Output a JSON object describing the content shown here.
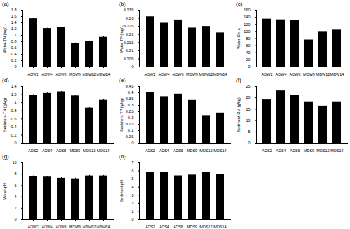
{
  "chart_data": [
    {
      "type": "bar",
      "title": "(a)",
      "y_label": "Water-TN (mg/L)",
      "categories": [
        "ADW2",
        "ADW4",
        "ADW6",
        "MDW9",
        "MDW12",
        "MDW14"
      ],
      "values": [
        1.53,
        1.22,
        1.25,
        0.75,
        0.8,
        0.94
      ],
      "errors": [
        0.02,
        0.01,
        0.01,
        0.01,
        0.01,
        0.02
      ],
      "color": "#000000",
      "ylim": [
        0,
        1.8
      ],
      "yticks": [
        0,
        0.2,
        0.4,
        0.6,
        0.8,
        1,
        1.2,
        1.4,
        1.6,
        1.8
      ]
    },
    {
      "type": "bar",
      "title": "(b)",
      "y_label": "Water-TP (mg/L)",
      "categories": [
        "ADW2",
        "ADW4",
        "ADW6",
        "MDW9",
        "MDW12",
        "MDW14"
      ],
      "values": [
        0.031,
        0.027,
        0.029,
        0.024,
        0.025,
        0.021
      ],
      "errors": [
        0.0015,
        0.001,
        0.0015,
        0.0015,
        0.001,
        0.003
      ],
      "color": "#000000",
      "ylim": [
        0,
        0.035
      ],
      "yticks": [
        0,
        0.005,
        0.01,
        0.015,
        0.02,
        0.025,
        0.03,
        0.035
      ]
    },
    {
      "type": "bar",
      "title": "(c)",
      "y_label": "Water-Chl-a",
      "categories": [
        "ADW2",
        "ADW4",
        "ADW6",
        "MDW9",
        "MDW12",
        "MDW14"
      ],
      "values": [
        135,
        133,
        132,
        76,
        100,
        104
      ],
      "errors": [
        1.5,
        1,
        1,
        1,
        1,
        2
      ],
      "color": "#000000",
      "ylim": [
        0,
        160
      ],
      "yticks": [
        0,
        20,
        40,
        60,
        80,
        100,
        120,
        140,
        160
      ]
    },
    {
      "type": "bar",
      "title": "(d)",
      "y_label": "Sediment-TN (g/kg)",
      "categories": [
        "ADS2",
        "ADS4",
        "ADS6",
        "MDS9",
        "MDS12",
        "MDS14"
      ],
      "values": [
        1.19,
        1.23,
        1.27,
        1.17,
        0.87,
        1.06
      ],
      "errors": [
        0.01,
        0.01,
        0.01,
        0.01,
        0.01,
        0.03
      ],
      "color": "#000000",
      "ylim": [
        0,
        1.4
      ],
      "yticks": [
        0,
        0.2,
        0.4,
        0.6,
        0.8,
        1,
        1.2,
        1.4
      ]
    },
    {
      "type": "bar",
      "title": "(e)",
      "y_label": "Sediment-TP (g/kg)",
      "categories": [
        "ADS2",
        "ADS4",
        "ADS6",
        "MDS9",
        "MDS12",
        "MDS14"
      ],
      "values": [
        0.4,
        0.37,
        0.39,
        0.34,
        0.22,
        0.24
      ],
      "errors": [
        0.005,
        0.005,
        0.01,
        0.005,
        0.01,
        0.02
      ],
      "color": "#000000",
      "ylim": [
        0,
        0.45
      ],
      "yticks": [
        0,
        0.05,
        0.1,
        0.15,
        0.2,
        0.25,
        0.3,
        0.35,
        0.4,
        0.45
      ]
    },
    {
      "type": "bar",
      "title": "(f)",
      "y_label": "Sediment-OM (g/kg)",
      "categories": [
        "ADS2",
        "ADS4",
        "ADS6",
        "MDS9",
        "MDS12",
        "MDS14"
      ],
      "values": [
        19.1,
        23.1,
        21.0,
        18.3,
        16.4,
        18.3
      ],
      "errors": [
        0.3,
        0.3,
        0.3,
        0.3,
        0.2,
        0.3
      ],
      "color": "#000000",
      "ylim": [
        0,
        25
      ],
      "yticks": [
        0,
        5,
        10,
        15,
        20,
        25
      ]
    },
    {
      "type": "bar",
      "title": "(g)",
      "y_label": "Water-pH",
      "categories": [
        "ADW2",
        "ADW4",
        "ADW6",
        "MDW9",
        "MDW12",
        "MDW14"
      ],
      "values": [
        7.6,
        7.5,
        7.3,
        7.2,
        7.7,
        7.7
      ],
      "errors": [
        0.1,
        0.1,
        0.1,
        0.1,
        0.1,
        0.1
      ],
      "color": "#000000",
      "ylim": [
        0,
        10
      ],
      "yticks": [
        0,
        2,
        4,
        6,
        8,
        10
      ]
    },
    {
      "type": "bar",
      "title": "(h)",
      "y_label": "Sediment-pH",
      "categories": [
        "ADS2",
        "ADS4",
        "ADS6",
        "MDS9",
        "MDS12",
        "MDS14"
      ],
      "values": [
        5.8,
        5.8,
        5.4,
        5.5,
        5.8,
        5.6
      ],
      "errors": [
        0.05,
        0.05,
        0.05,
        0.05,
        0.05,
        0.05
      ],
      "color": "#000000",
      "ylim": [
        0,
        7
      ],
      "yticks": [
        0,
        1,
        2,
        3,
        4,
        5,
        6,
        7
      ]
    }
  ]
}
